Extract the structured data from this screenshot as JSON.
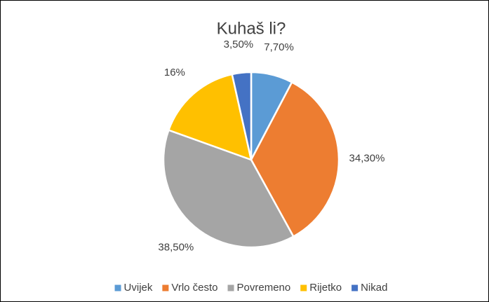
{
  "chart_data": {
    "type": "pie",
    "title": "Kuhaš li?",
    "categories": [
      "Uvijek",
      "Vrlo često",
      "Povremeno",
      "Rijetko",
      "Nikad"
    ],
    "values": [
      7.7,
      34.3,
      38.5,
      16,
      3.5
    ],
    "value_labels": [
      "7,70%",
      "34,30%",
      "38,50%",
      "16%",
      "3,50%"
    ],
    "colors": [
      "#5b9bd5",
      "#ed7d31",
      "#a5a5a5",
      "#ffc000",
      "#4472c4"
    ],
    "legend": "bottom"
  }
}
